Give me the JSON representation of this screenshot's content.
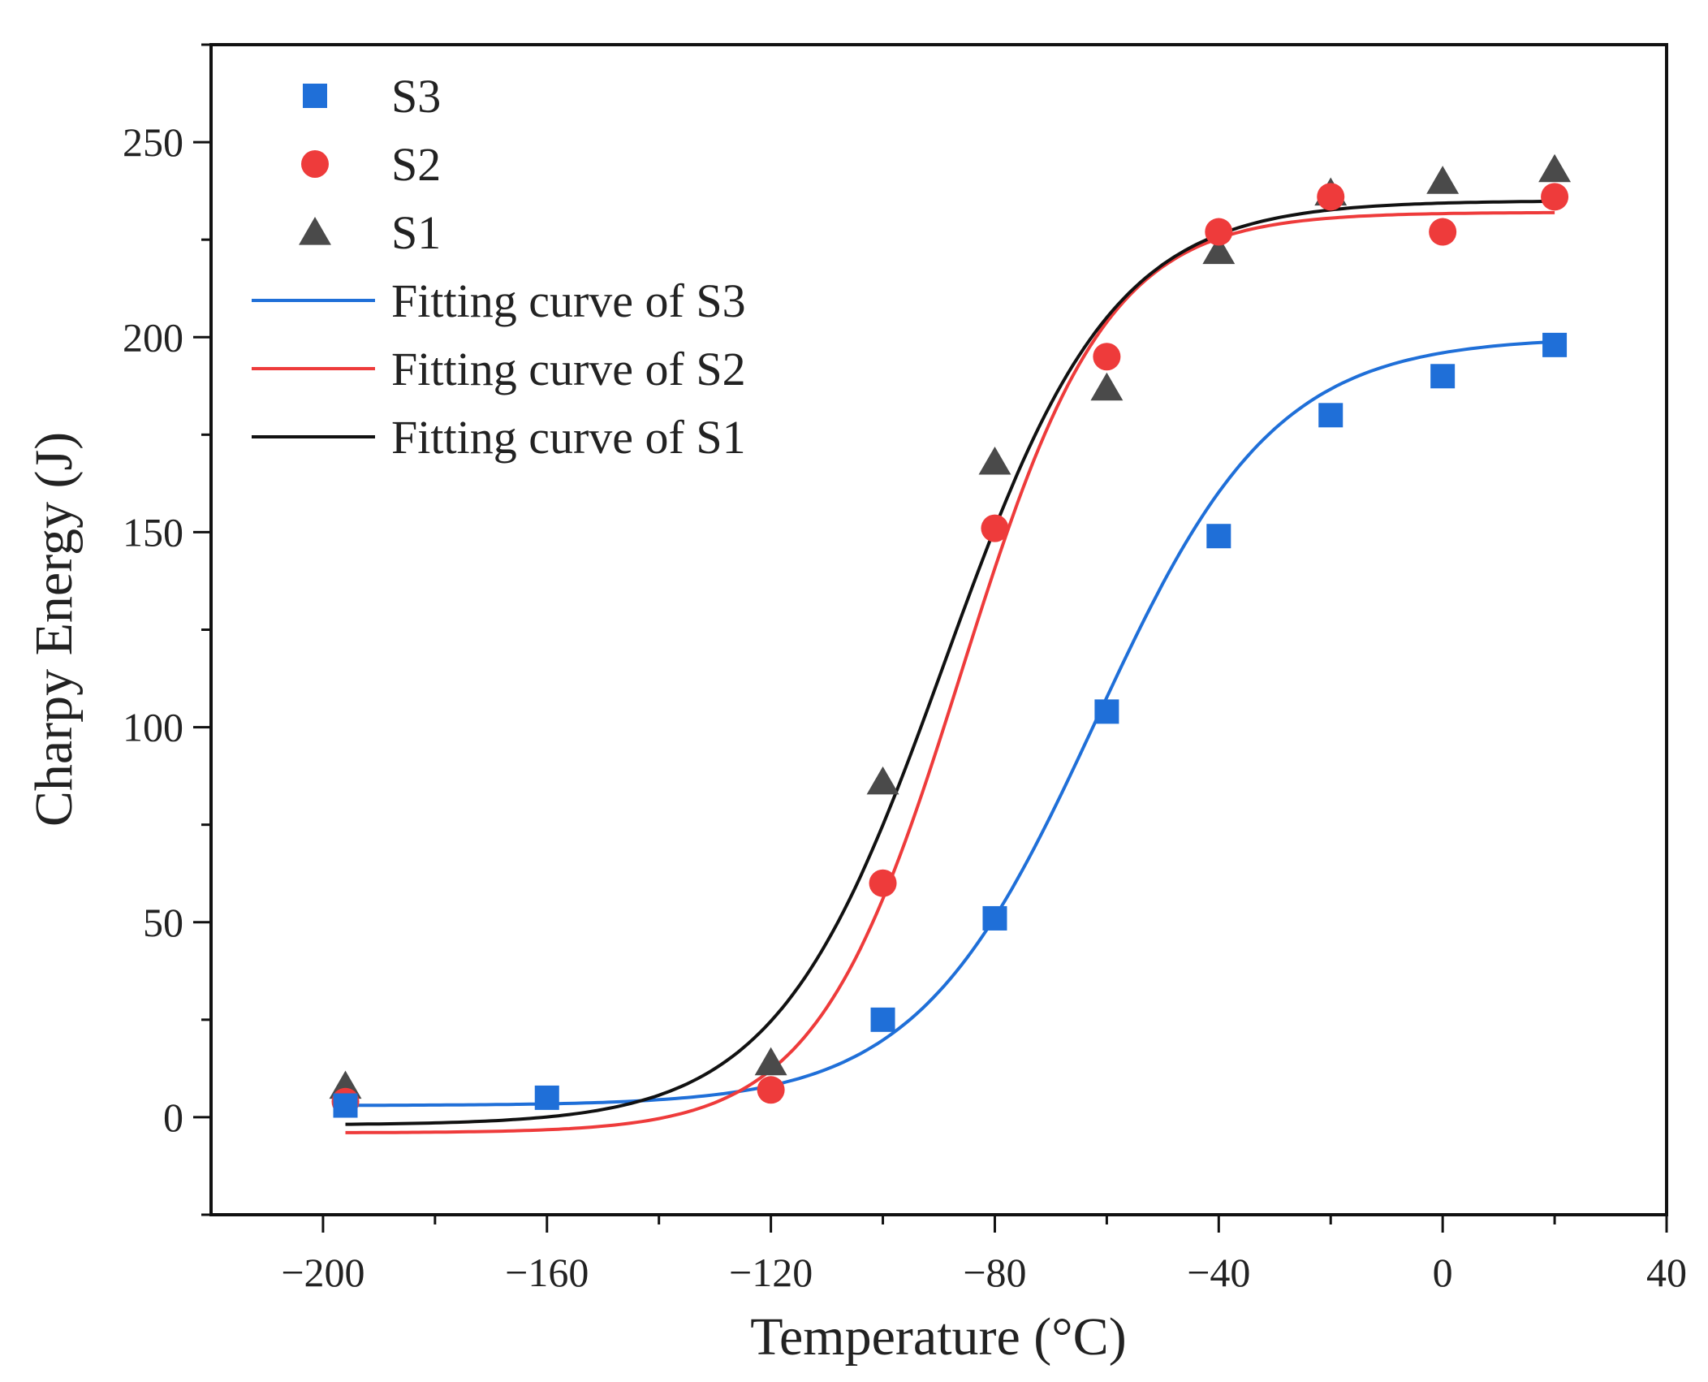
{
  "chart_data": {
    "type": "scatter",
    "title": "",
    "xlabel": "Temperature (°C)",
    "ylabel": "Charpy Energy (J)",
    "xlim": [
      -220,
      40
    ],
    "ylim": [
      -25,
      275
    ],
    "xticks": [
      -200,
      -160,
      -120,
      -80,
      -40,
      0,
      40
    ],
    "xtick_labels": [
      "-200",
      "-160",
      "-120",
      "-80",
      "-40",
      "0",
      "40"
    ],
    "yticks": [
      0,
      50,
      100,
      150,
      200,
      250
    ],
    "ytick_labels": [
      "0",
      "50",
      "100",
      "150",
      "200",
      "250"
    ],
    "grid": false,
    "legend_position": "top-left",
    "series": [
      {
        "name": "S3",
        "marker": "square",
        "color": "#1f6fd8",
        "points": [
          [
            -196,
            3
          ],
          [
            -160,
            5
          ],
          [
            -100,
            25
          ],
          [
            -80,
            51
          ],
          [
            -60,
            104
          ],
          [
            -40,
            149
          ],
          [
            -20,
            180
          ],
          [
            0,
            190
          ],
          [
            20,
            198
          ]
        ]
      },
      {
        "name": "S2",
        "marker": "circle",
        "color": "#ee3b3b",
        "points": [
          [
            -196,
            4
          ],
          [
            -120,
            7
          ],
          [
            -100,
            60
          ],
          [
            -80,
            151
          ],
          [
            -60,
            195
          ],
          [
            -40,
            227
          ],
          [
            -20,
            236
          ],
          [
            0,
            227
          ],
          [
            20,
            236
          ]
        ]
      },
      {
        "name": "S1",
        "marker": "triangle",
        "color": "#4a4a4a",
        "points": [
          [
            -196,
            8
          ],
          [
            -120,
            14
          ],
          [
            -100,
            86
          ],
          [
            -80,
            168
          ],
          [
            -60,
            187
          ],
          [
            -40,
            222
          ],
          [
            -20,
            237
          ],
          [
            0,
            240
          ],
          [
            20,
            243
          ]
        ]
      }
    ],
    "fits": [
      {
        "name": "Fitting curve of S3",
        "color": "#1f6fd8",
        "A": 3,
        "B": 200,
        "T0": -62,
        "C": 16,
        "range": [
          -196,
          20
        ]
      },
      {
        "name": "Fitting curve of S2",
        "color": "#ee3b3b",
        "A": -4,
        "B": 232,
        "T0": -86,
        "C": 13,
        "range": [
          -196,
          20
        ]
      },
      {
        "name": "Fitting curve of S1",
        "color": "#111111",
        "A": -2,
        "B": 235,
        "T0": -89,
        "C": 15,
        "range": [
          -196,
          20
        ]
      }
    ]
  }
}
